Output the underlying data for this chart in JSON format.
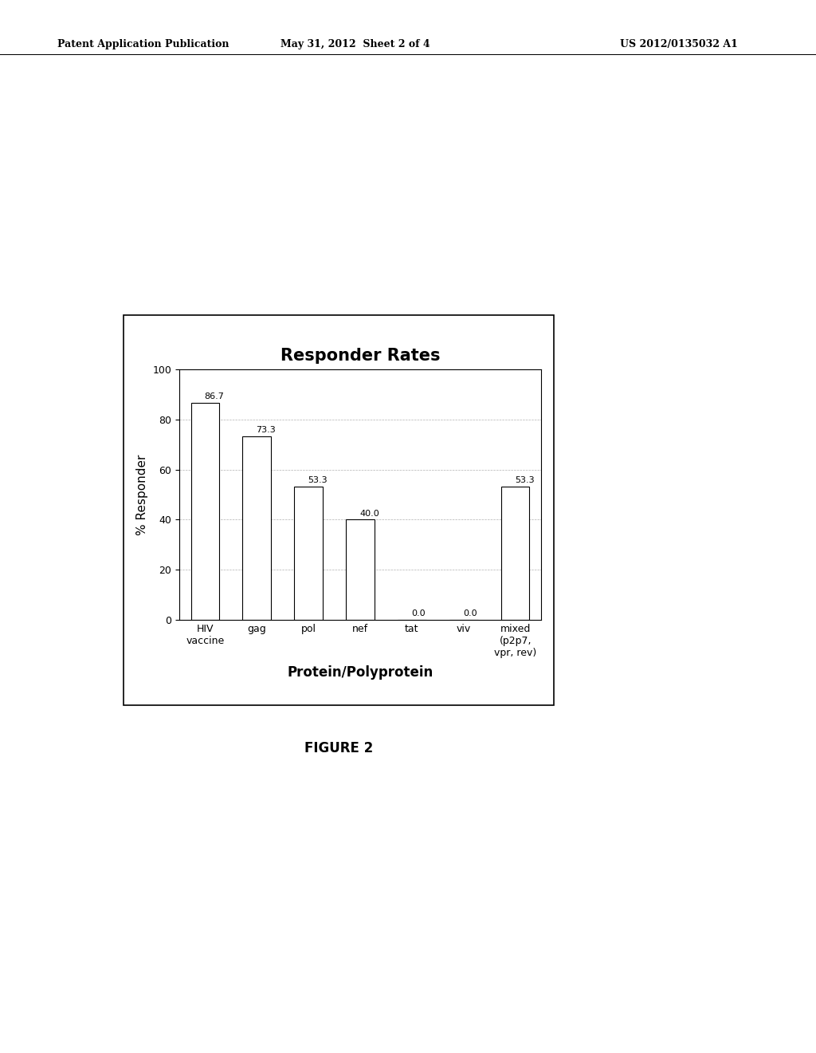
{
  "title": "Responder Rates",
  "xlabel": "Protein/Polyprotein",
  "ylabel": "% Responder",
  "categories": [
    "HIV\nvaccine",
    "gag",
    "pol",
    "nef",
    "tat",
    "viv",
    "mixed\n(p2p7,\nvpr, rev)"
  ],
  "values": [
    86.7,
    73.3,
    53.3,
    40.0,
    0.0,
    0.0,
    53.3
  ],
  "bar_color": "#ffffff",
  "bar_edge_color": "#000000",
  "ylim": [
    0,
    100
  ],
  "yticks": [
    0,
    20,
    40,
    60,
    80,
    100
  ],
  "grid_color": "#aaaaaa",
  "background_color": "#ffffff",
  "figure_caption": "FIGURE 2",
  "header_left": "Patent Application Publication",
  "header_center": "May 31, 2012  Sheet 2 of 4",
  "header_right": "US 2012/0135032 A1",
  "title_fontsize": 15,
  "axis_label_fontsize": 11,
  "tick_fontsize": 9,
  "value_label_fontsize": 8,
  "header_fontsize": 9,
  "caption_fontsize": 12
}
